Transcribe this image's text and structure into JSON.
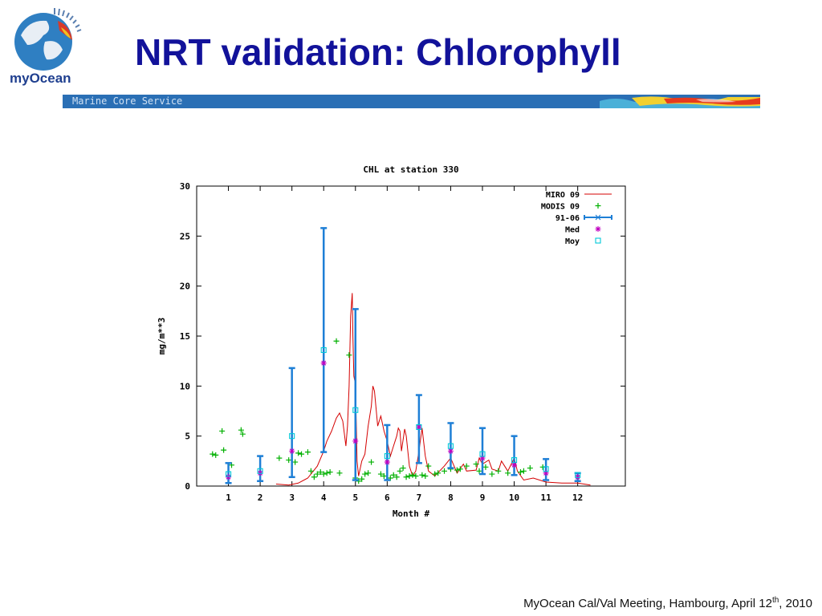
{
  "slide": {
    "title": "NRT validation: Chlorophyll",
    "banner_text": "Marine Core Service",
    "logo_text": "myOcean",
    "footer": {
      "prefix": "MyOcean Cal/Val Meeting, Hambourg, April 12",
      "superscript": "th",
      "suffix": ", 2010"
    }
  },
  "colors": {
    "title": "#12129a",
    "banner": "#2a6fb5",
    "miro": "#d40000",
    "modis": "#00b000",
    "errbar": "#1e7fd6",
    "med": "#c000c0",
    "moy": "#00c8d8"
  },
  "chart_data": {
    "type": "line",
    "title": "CHL at station 330",
    "xlabel": "Month #",
    "ylabel": "mg/m**3",
    "xlim": [
      0,
      13.5
    ],
    "ylim": [
      0,
      30
    ],
    "xticks": [
      "1",
      "2",
      "3",
      "4",
      "5",
      "6",
      "7",
      "8",
      "9",
      "10",
      "11",
      "12"
    ],
    "yticks": [
      "0",
      "5",
      "10",
      "15",
      "20",
      "25",
      "30"
    ],
    "legend_position": "top-right",
    "legend": [
      "MIRO 09",
      "MODIS 09",
      "91-06",
      "Med",
      "Moy"
    ],
    "series": [
      {
        "name": "MIRO 09",
        "kind": "line",
        "points": [
          [
            2.5,
            0.2
          ],
          [
            2.9,
            0.1
          ],
          [
            3.2,
            0.3
          ],
          [
            3.5,
            0.8
          ],
          [
            3.8,
            2.0
          ],
          [
            4.0,
            3.5
          ],
          [
            4.1,
            4.5
          ],
          [
            4.25,
            5.5
          ],
          [
            4.4,
            6.8
          ],
          [
            4.5,
            7.3
          ],
          [
            4.6,
            6.5
          ],
          [
            4.7,
            4.0
          ],
          [
            4.75,
            6.0
          ],
          [
            4.8,
            10.0
          ],
          [
            4.85,
            17.0
          ],
          [
            4.9,
            19.3
          ],
          [
            4.92,
            15.0
          ],
          [
            4.95,
            11.0
          ],
          [
            5.0,
            10.2
          ],
          [
            5.05,
            2.5
          ],
          [
            5.1,
            1.0
          ],
          [
            5.2,
            2.5
          ],
          [
            5.3,
            3.2
          ],
          [
            5.4,
            6.0
          ],
          [
            5.5,
            8.0
          ],
          [
            5.55,
            10.0
          ],
          [
            5.6,
            9.5
          ],
          [
            5.7,
            6.0
          ],
          [
            5.8,
            7.0
          ],
          [
            5.9,
            5.5
          ],
          [
            6.0,
            4.5
          ],
          [
            6.1,
            3.0
          ],
          [
            6.2,
            4.0
          ],
          [
            6.3,
            5.0
          ],
          [
            6.35,
            5.8
          ],
          [
            6.4,
            5.5
          ],
          [
            6.45,
            3.5
          ],
          [
            6.55,
            5.7
          ],
          [
            6.6,
            5.0
          ],
          [
            6.7,
            2.0
          ],
          [
            6.8,
            1.0
          ],
          [
            6.9,
            1.5
          ],
          [
            7.0,
            3.5
          ],
          [
            7.1,
            5.8
          ],
          [
            7.2,
            3.0
          ],
          [
            7.3,
            1.5
          ],
          [
            7.5,
            1.0
          ],
          [
            7.8,
            2.0
          ],
          [
            8.0,
            2.8
          ],
          [
            8.2,
            1.3
          ],
          [
            8.4,
            2.2
          ],
          [
            8.5,
            1.5
          ],
          [
            8.8,
            1.6
          ],
          [
            8.9,
            2.8
          ],
          [
            9.0,
            2.2
          ],
          [
            9.2,
            2.6
          ],
          [
            9.3,
            1.7
          ],
          [
            9.5,
            1.5
          ],
          [
            9.6,
            2.5
          ],
          [
            9.8,
            1.5
          ],
          [
            10.0,
            2.8
          ],
          [
            10.1,
            1.5
          ],
          [
            10.3,
            0.6
          ],
          [
            10.6,
            0.8
          ],
          [
            11.0,
            0.4
          ],
          [
            11.5,
            0.3
          ],
          [
            12.0,
            0.3
          ],
          [
            12.4,
            0.1
          ]
        ]
      },
      {
        "name": "MODIS 09",
        "kind": "scatter",
        "points": [
          [
            0.5,
            3.2
          ],
          [
            0.6,
            3.1
          ],
          [
            0.8,
            5.5
          ],
          [
            0.85,
            3.6
          ],
          [
            1.1,
            2.1
          ],
          [
            1.4,
            5.6
          ],
          [
            1.45,
            5.2
          ],
          [
            2.6,
            2.8
          ],
          [
            2.9,
            2.6
          ],
          [
            3.1,
            2.4
          ],
          [
            3.2,
            3.3
          ],
          [
            3.3,
            3.2
          ],
          [
            3.5,
            3.4
          ],
          [
            3.6,
            1.5
          ],
          [
            3.7,
            0.9
          ],
          [
            3.8,
            1.2
          ],
          [
            3.9,
            1.4
          ],
          [
            4.0,
            1.2
          ],
          [
            4.1,
            1.3
          ],
          [
            4.2,
            1.4
          ],
          [
            4.4,
            14.5
          ],
          [
            4.5,
            1.3
          ],
          [
            4.8,
            13.1
          ],
          [
            5.0,
            0.8
          ],
          [
            5.1,
            0.5
          ],
          [
            5.2,
            0.7
          ],
          [
            5.3,
            1.2
          ],
          [
            5.4,
            1.3
          ],
          [
            5.5,
            2.4
          ],
          [
            5.8,
            1.2
          ],
          [
            5.9,
            1.0
          ],
          [
            6.1,
            0.8
          ],
          [
            6.2,
            1.1
          ],
          [
            6.3,
            0.9
          ],
          [
            6.4,
            1.5
          ],
          [
            6.5,
            1.8
          ],
          [
            6.6,
            0.9
          ],
          [
            6.7,
            1.0
          ],
          [
            6.8,
            1.1
          ],
          [
            6.9,
            1.0
          ],
          [
            7.1,
            1.1
          ],
          [
            7.2,
            1.0
          ],
          [
            7.3,
            2.0
          ],
          [
            7.5,
            1.2
          ],
          [
            7.6,
            1.3
          ],
          [
            7.8,
            1.5
          ],
          [
            8.0,
            1.7
          ],
          [
            8.2,
            1.6
          ],
          [
            8.3,
            1.7
          ],
          [
            8.5,
            2.0
          ],
          [
            8.8,
            2.2
          ],
          [
            8.9,
            1.5
          ],
          [
            9.1,
            1.9
          ],
          [
            9.3,
            1.2
          ],
          [
            9.5,
            1.5
          ],
          [
            9.8,
            1.3
          ],
          [
            10.2,
            1.4
          ],
          [
            10.3,
            1.5
          ],
          [
            10.5,
            1.8
          ],
          [
            10.9,
            1.9
          ]
        ]
      },
      {
        "name": "91-06",
        "kind": "errorbar",
        "points": [
          {
            "x": 1,
            "y": 0.9,
            "low": 0.3,
            "high": 2.3
          },
          {
            "x": 2,
            "y": 1.3,
            "low": 0.5,
            "high": 3.0
          },
          {
            "x": 3,
            "y": 3.5,
            "low": 0.9,
            "high": 11.8
          },
          {
            "x": 4,
            "y": 12.3,
            "low": 3.4,
            "high": 25.8
          },
          {
            "x": 5,
            "y": 4.5,
            "low": 0.6,
            "high": 17.7
          },
          {
            "x": 6,
            "y": 2.4,
            "low": 0.6,
            "high": 6.1
          },
          {
            "x": 7,
            "y": 5.9,
            "low": 2.3,
            "high": 9.1
          },
          {
            "x": 8,
            "y": 3.5,
            "low": 1.8,
            "high": 6.3
          },
          {
            "x": 9,
            "y": 2.8,
            "low": 1.2,
            "high": 5.8
          },
          {
            "x": 10,
            "y": 2.1,
            "low": 1.1,
            "high": 5.0
          },
          {
            "x": 11,
            "y": 1.3,
            "low": 0.6,
            "high": 2.7
          },
          {
            "x": 12,
            "y": 0.9,
            "low": 0.5,
            "high": 1.3
          }
        ]
      },
      {
        "name": "Med",
        "kind": "scatter",
        "points": [
          [
            1,
            0.9
          ],
          [
            2,
            1.3
          ],
          [
            3,
            3.5
          ],
          [
            4,
            12.3
          ],
          [
            5,
            4.5
          ],
          [
            6,
            2.4
          ],
          [
            7,
            5.9
          ],
          [
            8,
            3.5
          ],
          [
            9,
            2.8
          ],
          [
            10,
            2.1
          ],
          [
            11,
            1.3
          ],
          [
            12,
            0.9
          ]
        ]
      },
      {
        "name": "Moy",
        "kind": "scatter",
        "points": [
          [
            1,
            1.2
          ],
          [
            2,
            1.5
          ],
          [
            3,
            5.0
          ],
          [
            4,
            13.6
          ],
          [
            5,
            7.6
          ],
          [
            6,
            3.0
          ],
          [
            7,
            5.9
          ],
          [
            8,
            4.0
          ],
          [
            9,
            3.2
          ],
          [
            10,
            2.6
          ],
          [
            11,
            1.7
          ],
          [
            12,
            1.1
          ]
        ]
      }
    ]
  }
}
